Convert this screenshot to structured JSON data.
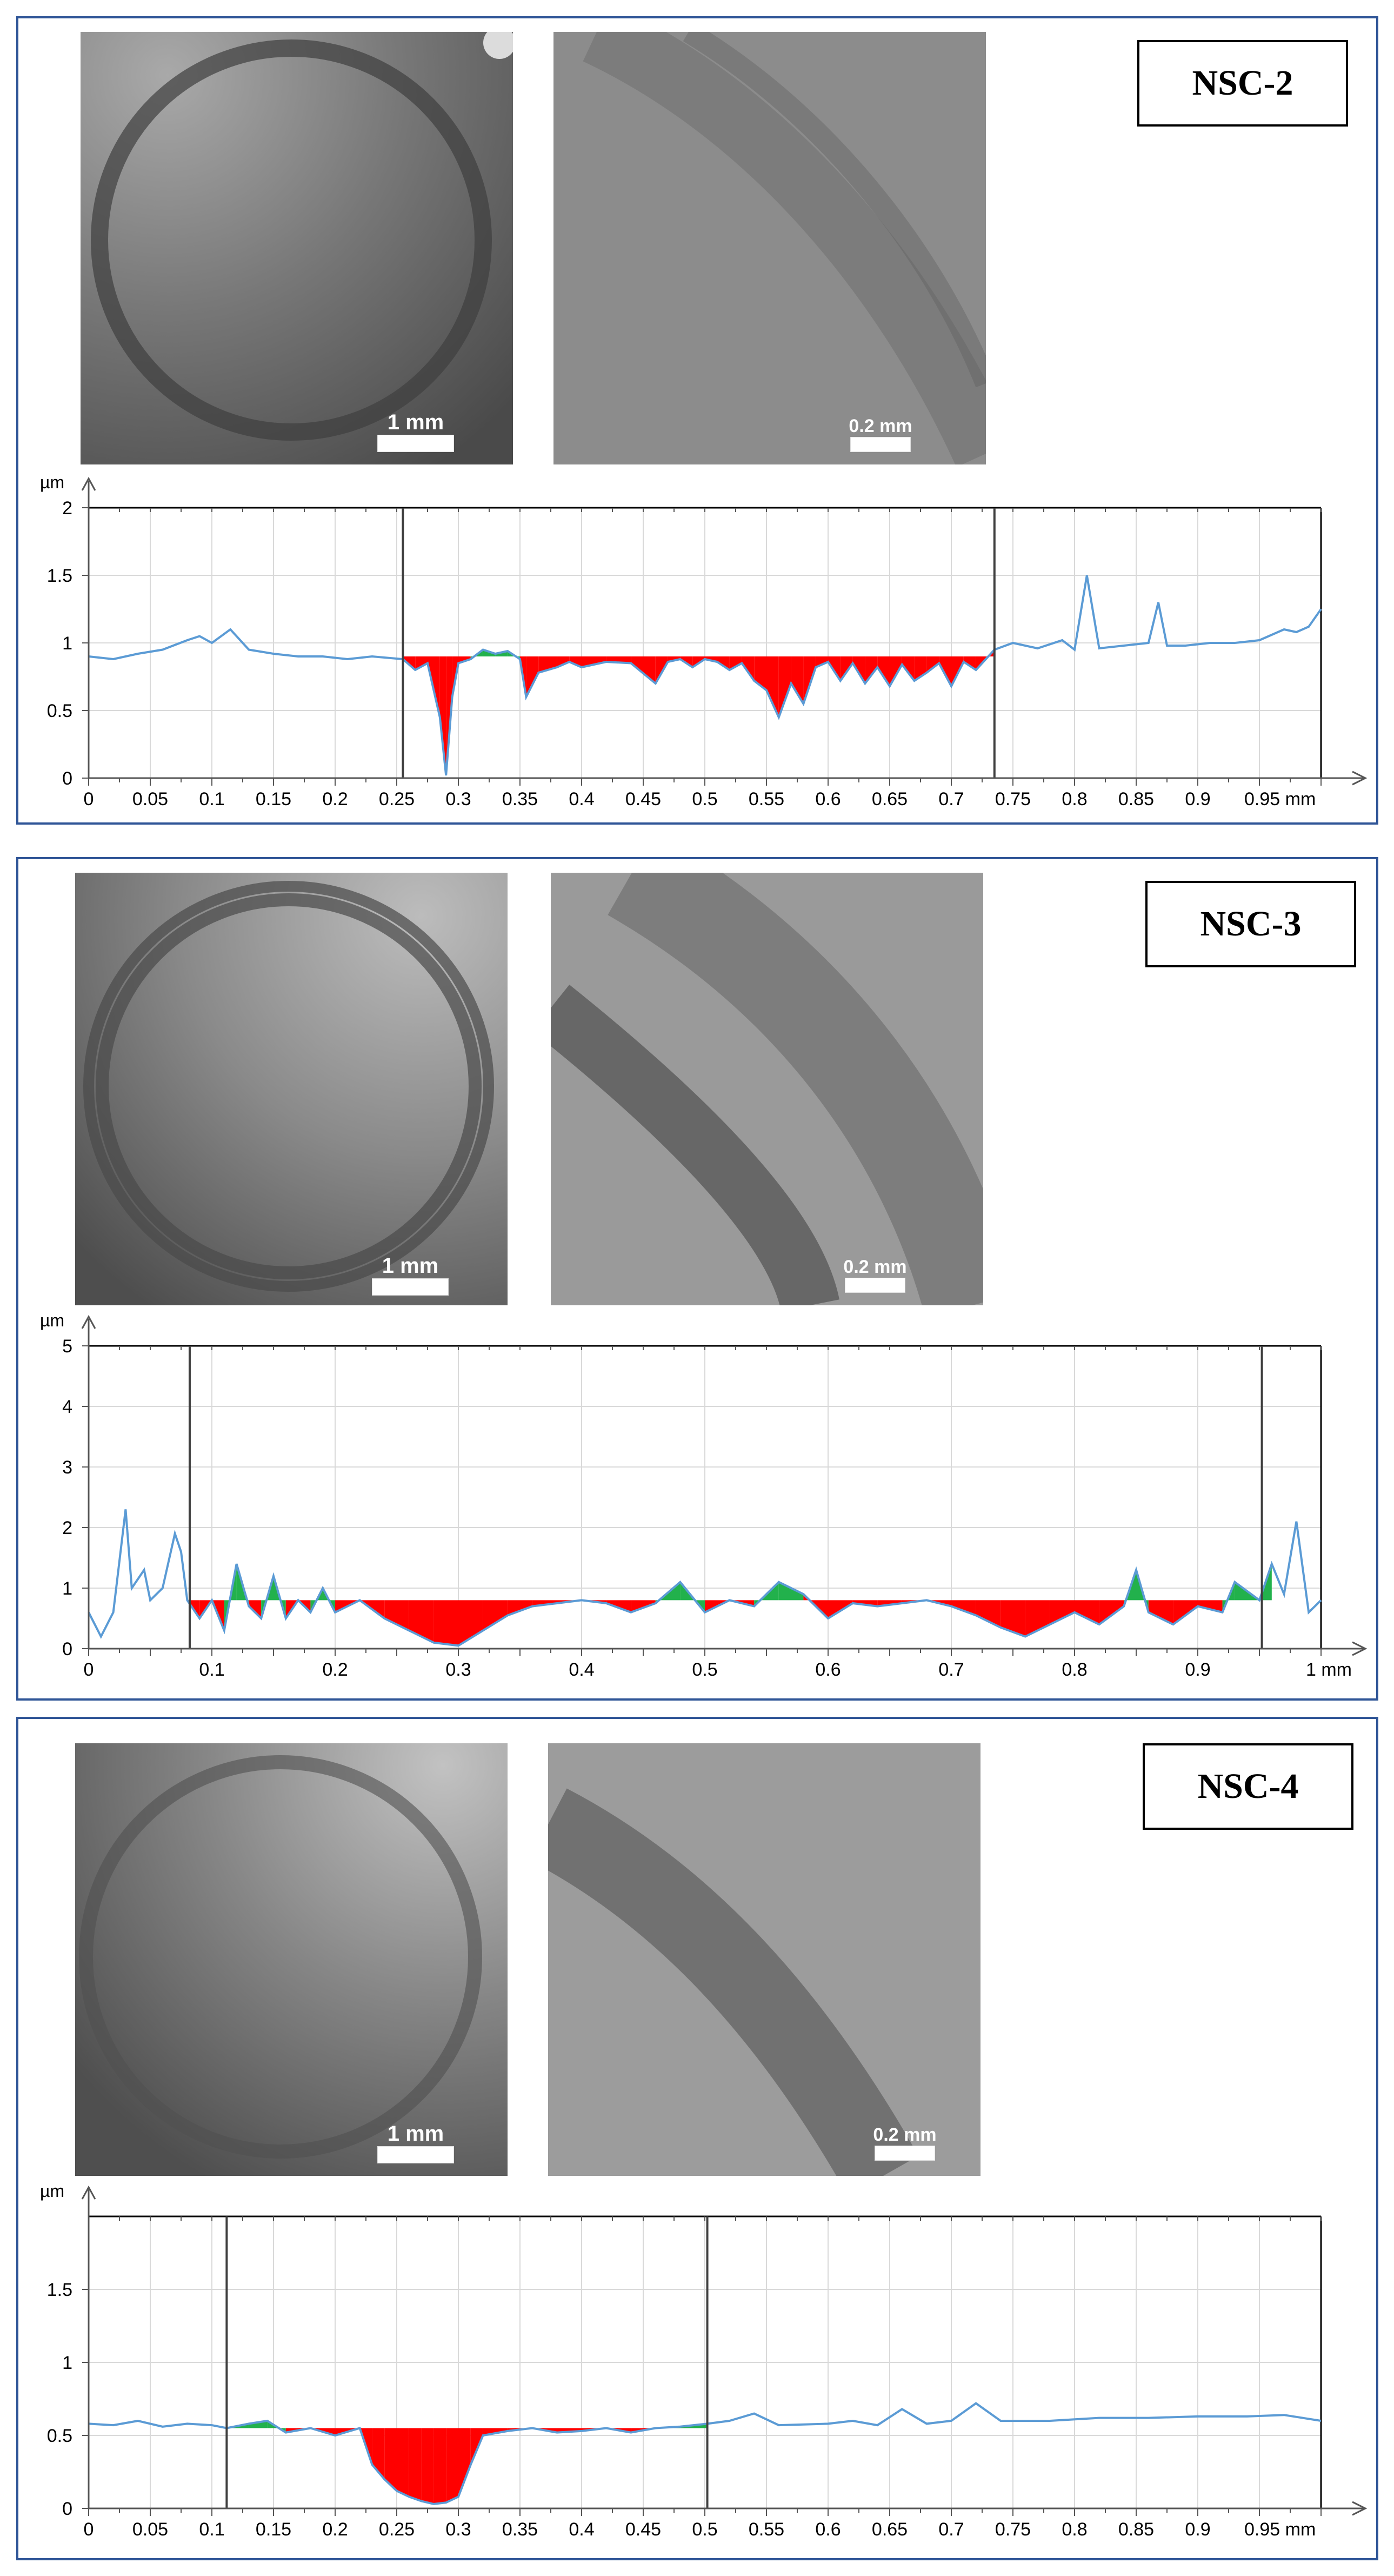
{
  "colors": {
    "panel_border": "#2f5597",
    "profile_line": "#5b9bd5",
    "valley_fill": "#ff0000",
    "peak_fill": "#22b14c",
    "grid": "#d9d9d9"
  },
  "panels": [
    {
      "label": "NSC-2",
      "photo_left": {
        "description_icon": "circular-wear-track-overview",
        "scale_label": "1 mm"
      },
      "photo_right": {
        "description_icon": "wear-track-detail",
        "scale_label": "0.2 mm"
      },
      "chart_data": {
        "type": "area",
        "y_unit": "µm",
        "x_unit": "mm",
        "xlim": [
          0,
          1.0
        ],
        "ylim": [
          0,
          2
        ],
        "x_ticks": [
          0,
          0.05,
          0.1,
          0.15,
          0.2,
          0.25,
          0.3,
          0.35,
          0.4,
          0.45,
          0.5,
          0.55,
          0.6,
          0.65,
          0.7,
          0.75,
          0.8,
          0.85,
          0.9,
          0.95
        ],
        "x_tick_labels": [
          "0",
          "0.05",
          "0.1",
          "0.15",
          "0.2",
          "0.25",
          "0.3",
          "0.35",
          "0.4",
          "0.45",
          "0.5",
          "0.55",
          "0.6",
          "0.65",
          "0.7",
          "0.75",
          "0.8",
          "0.85",
          "0.9",
          "0.95 mm"
        ],
        "y_ticks": [
          0,
          0.5,
          1,
          1.5,
          2
        ],
        "y_tick_labels": [
          "0",
          "0.5",
          "1",
          "1.5",
          "2"
        ],
        "markers": [
          0.255,
          0.735
        ],
        "reference_level": 0.9,
        "profile": {
          "x": [
            0,
            0.02,
            0.04,
            0.06,
            0.08,
            0.09,
            0.1,
            0.115,
            0.13,
            0.15,
            0.17,
            0.19,
            0.21,
            0.23,
            0.255,
            0.265,
            0.275,
            0.285,
            0.29,
            0.295,
            0.3,
            0.31,
            0.32,
            0.33,
            0.34,
            0.35,
            0.355,
            0.365,
            0.38,
            0.39,
            0.4,
            0.42,
            0.44,
            0.46,
            0.47,
            0.48,
            0.49,
            0.5,
            0.51,
            0.52,
            0.53,
            0.54,
            0.55,
            0.56,
            0.57,
            0.58,
            0.59,
            0.6,
            0.61,
            0.62,
            0.63,
            0.64,
            0.65,
            0.66,
            0.67,
            0.68,
            0.69,
            0.7,
            0.71,
            0.72,
            0.735,
            0.75,
            0.77,
            0.79,
            0.8,
            0.81,
            0.82,
            0.84,
            0.86,
            0.868,
            0.875,
            0.89,
            0.91,
            0.93,
            0.95,
            0.97,
            0.98,
            0.99,
            1.0
          ],
          "y": [
            0.9,
            0.88,
            0.92,
            0.95,
            1.02,
            1.05,
            1.0,
            1.1,
            0.95,
            0.92,
            0.9,
            0.9,
            0.88,
            0.9,
            0.88,
            0.8,
            0.85,
            0.45,
            0.02,
            0.6,
            0.85,
            0.88,
            0.95,
            0.92,
            0.94,
            0.88,
            0.6,
            0.78,
            0.82,
            0.86,
            0.82,
            0.86,
            0.85,
            0.7,
            0.86,
            0.88,
            0.82,
            0.88,
            0.86,
            0.8,
            0.85,
            0.72,
            0.65,
            0.45,
            0.7,
            0.55,
            0.82,
            0.86,
            0.72,
            0.85,
            0.7,
            0.82,
            0.68,
            0.84,
            0.72,
            0.78,
            0.85,
            0.68,
            0.86,
            0.8,
            0.95,
            1.0,
            0.96,
            1.02,
            0.95,
            1.5,
            0.96,
            0.98,
            1.0,
            1.3,
            0.98,
            0.98,
            1.0,
            1.0,
            1.02,
            1.1,
            1.08,
            1.12,
            1.25
          ]
        }
      }
    },
    {
      "label": "NSC-3",
      "photo_left": {
        "description_icon": "circular-wear-track-overview",
        "scale_label": "1 mm"
      },
      "photo_right": {
        "description_icon": "wear-track-detail",
        "scale_label": "0.2 mm"
      },
      "chart_data": {
        "type": "area",
        "y_unit": "µm",
        "x_unit": "mm",
        "xlim": [
          0,
          1.0
        ],
        "ylim": [
          0,
          5
        ],
        "x_ticks": [
          0,
          0.1,
          0.2,
          0.3,
          0.4,
          0.5,
          0.6,
          0.7,
          0.8,
          0.9,
          1.0
        ],
        "x_tick_labels": [
          "0",
          "0.1",
          "0.2",
          "0.3",
          "0.4",
          "0.5",
          "0.6",
          "0.7",
          "0.8",
          "0.9",
          "1 mm"
        ],
        "y_ticks": [
          0,
          1,
          2,
          3,
          4,
          5
        ],
        "y_tick_labels": [
          "0",
          "1",
          "2",
          "3",
          "4",
          "5"
        ],
        "markers": [
          0.082,
          0.952
        ],
        "reference_level": 0.8,
        "profile": {
          "x": [
            0,
            0.01,
            0.02,
            0.03,
            0.035,
            0.045,
            0.05,
            0.06,
            0.07,
            0.075,
            0.08,
            0.09,
            0.1,
            0.11,
            0.12,
            0.13,
            0.14,
            0.15,
            0.16,
            0.17,
            0.18,
            0.19,
            0.2,
            0.22,
            0.24,
            0.26,
            0.28,
            0.3,
            0.32,
            0.34,
            0.36,
            0.38,
            0.4,
            0.42,
            0.44,
            0.46,
            0.48,
            0.5,
            0.52,
            0.54,
            0.56,
            0.58,
            0.6,
            0.62,
            0.64,
            0.66,
            0.68,
            0.7,
            0.72,
            0.74,
            0.76,
            0.78,
            0.8,
            0.82,
            0.84,
            0.85,
            0.86,
            0.88,
            0.9,
            0.92,
            0.93,
            0.95,
            0.96,
            0.97,
            0.98,
            0.99,
            1.0
          ],
          "y": [
            0.6,
            0.2,
            0.6,
            2.3,
            1.0,
            1.3,
            0.8,
            1.0,
            1.9,
            1.6,
            0.8,
            0.5,
            0.8,
            0.3,
            1.4,
            0.7,
            0.5,
            1.2,
            0.5,
            0.8,
            0.6,
            1.0,
            0.6,
            0.8,
            0.5,
            0.3,
            0.1,
            0.05,
            0.3,
            0.55,
            0.7,
            0.75,
            0.8,
            0.75,
            0.6,
            0.75,
            1.1,
            0.6,
            0.8,
            0.7,
            1.1,
            0.9,
            0.5,
            0.75,
            0.7,
            0.75,
            0.8,
            0.7,
            0.55,
            0.35,
            0.2,
            0.4,
            0.6,
            0.4,
            0.7,
            1.3,
            0.6,
            0.4,
            0.7,
            0.6,
            1.1,
            0.8,
            1.4,
            0.9,
            2.1,
            0.6,
            0.8
          ]
        }
      }
    },
    {
      "label": "NSC-4",
      "photo_left": {
        "description_icon": "circular-wear-track-overview",
        "scale_label": "1 mm"
      },
      "photo_right": {
        "description_icon": "wear-track-detail",
        "scale_label": "0.2 mm"
      },
      "chart_data": {
        "type": "area",
        "y_unit": "µm",
        "x_unit": "mm",
        "xlim": [
          0,
          1.0
        ],
        "ylim": [
          0,
          2
        ],
        "x_ticks": [
          0,
          0.05,
          0.1,
          0.15,
          0.2,
          0.25,
          0.3,
          0.35,
          0.4,
          0.45,
          0.5,
          0.55,
          0.6,
          0.65,
          0.7,
          0.75,
          0.8,
          0.85,
          0.9,
          0.95
        ],
        "x_tick_labels": [
          "0",
          "0.05",
          "0.1",
          "0.15",
          "0.2",
          "0.25",
          "0.3",
          "0.35",
          "0.4",
          "0.45",
          "0.5",
          "0.55",
          "0.6",
          "0.65",
          "0.7",
          "0.75",
          "0.8",
          "0.85",
          "0.9",
          "0.95 mm"
        ],
        "y_ticks": [
          0,
          0.5,
          1,
          1.5
        ],
        "y_tick_labels": [
          "0",
          "0.5",
          "1",
          "1.5"
        ],
        "markers": [
          0.112,
          0.502
        ],
        "reference_level": 0.55,
        "profile": {
          "x": [
            0,
            0.02,
            0.04,
            0.06,
            0.08,
            0.1,
            0.112,
            0.13,
            0.145,
            0.16,
            0.18,
            0.2,
            0.22,
            0.23,
            0.24,
            0.25,
            0.26,
            0.27,
            0.28,
            0.29,
            0.3,
            0.31,
            0.32,
            0.34,
            0.36,
            0.38,
            0.4,
            0.42,
            0.44,
            0.46,
            0.48,
            0.502,
            0.52,
            0.54,
            0.56,
            0.6,
            0.62,
            0.64,
            0.66,
            0.68,
            0.7,
            0.72,
            0.74,
            0.78,
            0.82,
            0.86,
            0.9,
            0.94,
            0.97,
            1.0
          ],
          "y": [
            0.58,
            0.57,
            0.6,
            0.56,
            0.58,
            0.57,
            0.55,
            0.58,
            0.6,
            0.52,
            0.55,
            0.5,
            0.55,
            0.3,
            0.2,
            0.12,
            0.08,
            0.05,
            0.03,
            0.04,
            0.08,
            0.3,
            0.5,
            0.53,
            0.55,
            0.52,
            0.53,
            0.55,
            0.52,
            0.55,
            0.56,
            0.58,
            0.6,
            0.65,
            0.57,
            0.58,
            0.6,
            0.57,
            0.68,
            0.58,
            0.6,
            0.72,
            0.6,
            0.6,
            0.62,
            0.62,
            0.63,
            0.63,
            0.64,
            0.6
          ]
        }
      }
    }
  ]
}
